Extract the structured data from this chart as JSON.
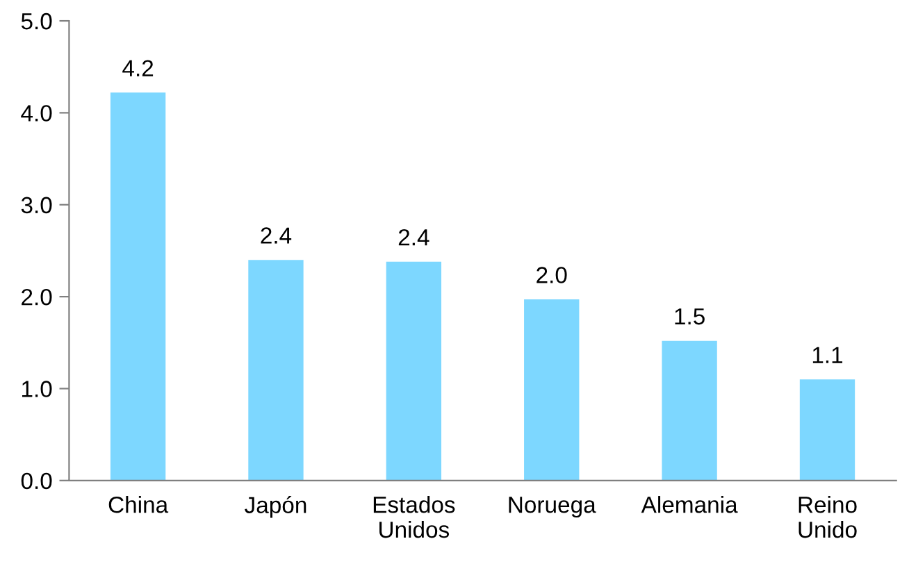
{
  "chart_data": {
    "type": "bar",
    "categories": [
      "China",
      "Japón",
      "Estados Unidos",
      "Noruega",
      "Alemania",
      "Reino Unido"
    ],
    "values": [
      4.22,
      2.4,
      2.38,
      1.97,
      1.52,
      1.1
    ],
    "value_labels": [
      "4.2",
      "2.4",
      "2.4",
      "2.0",
      "1.5",
      "1.1"
    ],
    "color": "#7dd7ff",
    "ylim": [
      0,
      5
    ],
    "yticks": [
      "0.0",
      "1.0",
      "2.0",
      "3.0",
      "4.0",
      "5.0"
    ],
    "grid": false,
    "legend": false
  }
}
